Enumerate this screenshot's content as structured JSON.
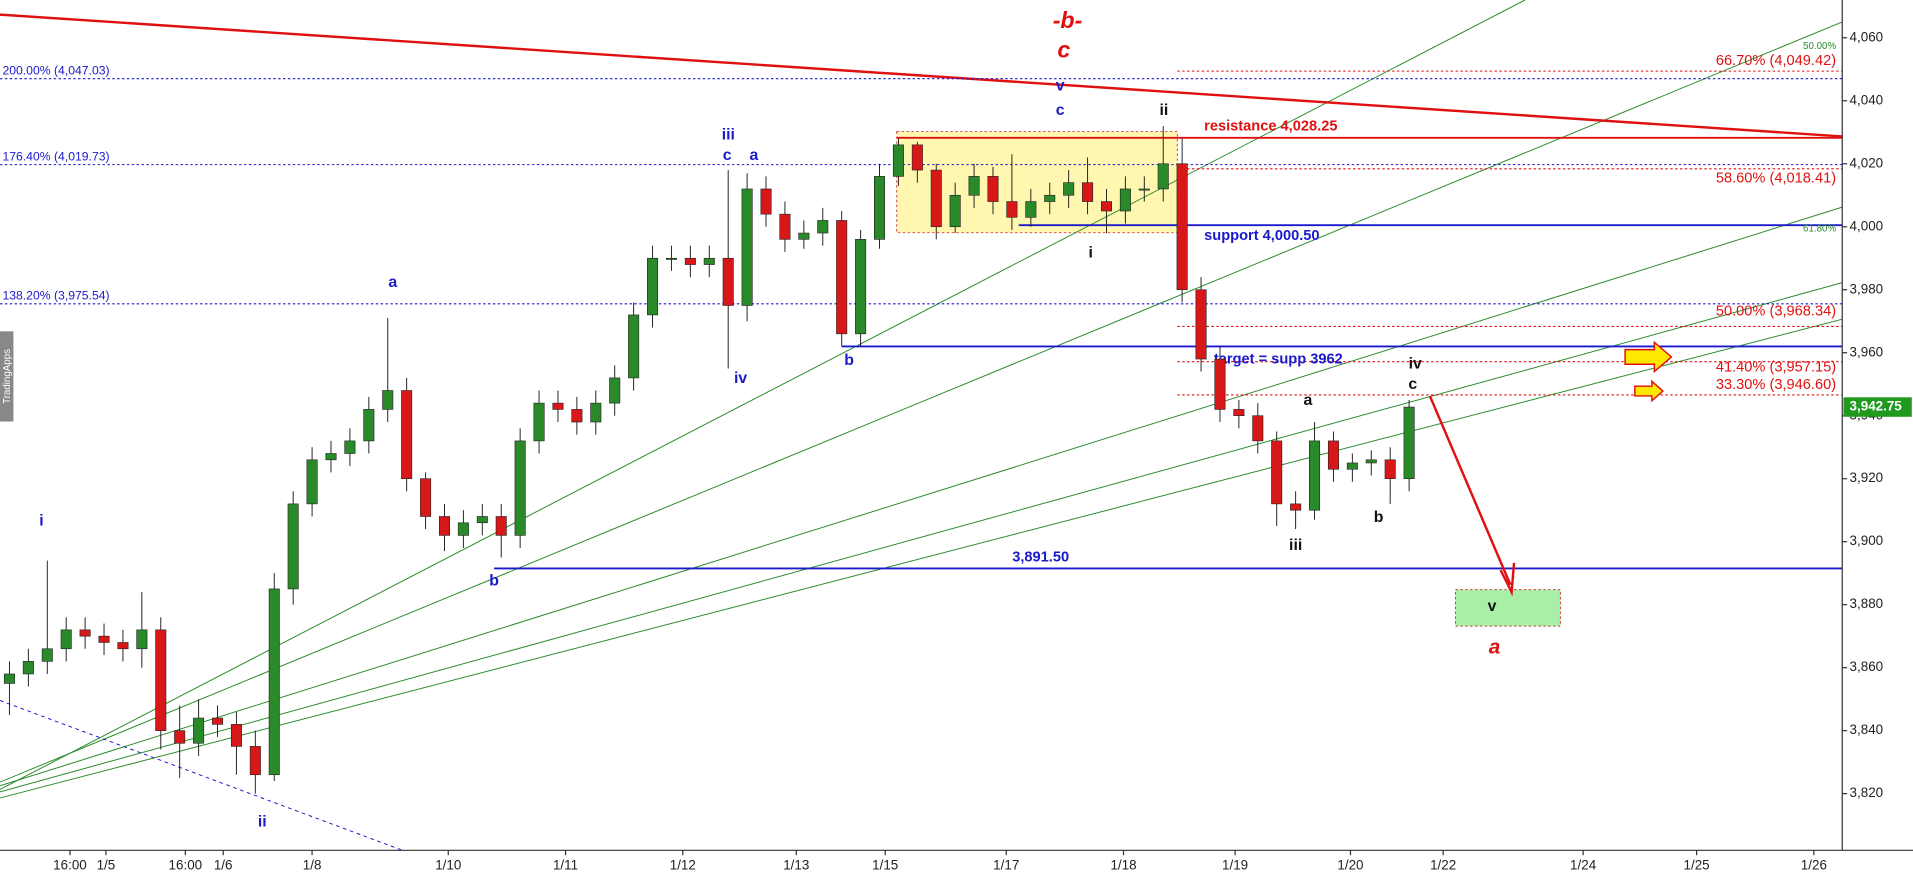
{
  "chart_data": {
    "type": "candlestick",
    "candles": {
      "open": [
        3855,
        3858,
        3862,
        3866,
        3872,
        3870,
        3868,
        3866,
        3872,
        3840,
        3836,
        3844,
        3842,
        3835,
        3826,
        3885,
        3912,
        3926,
        3928,
        3932,
        3942,
        3948,
        3920,
        3908,
        3902,
        3906,
        3908,
        3902,
        3932,
        3944,
        3942,
        3938,
        3944,
        3952,
        3972,
        3990,
        3990,
        3988,
        3990,
        3975,
        4012,
        4004,
        3996,
        3998,
        4002,
        3966,
        3996,
        4016,
        4026,
        4018,
        4000,
        4010,
        4016,
        4008,
        4003,
        4008,
        4010,
        4014,
        4008,
        4005,
        4012,
        4012,
        4020,
        3980,
        3958,
        3942,
        3940,
        3932,
        3912,
        3910,
        3932,
        3923,
        3925,
        3926,
        3920
      ],
      "high": [
        3862,
        3866,
        3894,
        3876,
        3876,
        3874,
        3872,
        3884,
        3876,
        3848,
        3850,
        3848,
        3846,
        3840,
        3890,
        3916,
        3930,
        3932,
        3936,
        3946,
        3971,
        3952,
        3922,
        3912,
        3910,
        3912,
        3912,
        3936,
        3948,
        3948,
        3946,
        3948,
        3956,
        3976,
        3994,
        3994,
        3994,
        3994,
        4018,
        4017,
        4016,
        4008,
        4002,
        4006,
        4005,
        3999,
        4020,
        4028,
        4027,
        4020,
        4014,
        4020,
        4019,
        4023,
        4012,
        4014,
        4018,
        4022,
        4012,
        4016,
        4016,
        4032,
        4028,
        3984,
        3962,
        3945,
        3944,
        3935,
        3916,
        3938,
        3935,
        3928,
        3929,
        3930,
        3945
      ],
      "low": [
        3845,
        3854,
        3858,
        3862,
        3866,
        3864,
        3862,
        3860,
        3834,
        3825,
        3832,
        3838,
        3826,
        3820,
        3824,
        3880,
        3908,
        3922,
        3924,
        3928,
        3938,
        3916,
        3904,
        3897,
        3898,
        3902,
        3895,
        3898,
        3928,
        3938,
        3934,
        3934,
        3940,
        3948,
        3968,
        3986,
        3984,
        3984,
        3955,
        3970,
        4000,
        3992,
        3993,
        3994,
        3962,
        3962,
        3993,
        4013,
        4014,
        3996,
        3998,
        4006,
        4004,
        3999,
        4000,
        4004,
        4006,
        4004,
        3998,
        4001,
        4008,
        4008,
        3976,
        3954,
        3938,
        3936,
        3928,
        3905,
        3904,
        3907,
        3919,
        3919,
        3921,
        3912,
        3916
      ],
      "close": [
        3858,
        3862,
        3866,
        3872,
        3870,
        3868,
        3866,
        3872,
        3840,
        3836,
        3844,
        3842,
        3835,
        3826,
        3885,
        3912,
        3926,
        3928,
        3932,
        3942,
        3948,
        3920,
        3908,
        3902,
        3906,
        3908,
        3902,
        3932,
        3944,
        3942,
        3938,
        3944,
        3952,
        3972,
        3990,
        3990,
        3988,
        3990,
        3975,
        4012,
        4004,
        3996,
        3998,
        4002,
        3966,
        3996,
        4016,
        4026,
        4018,
        4000,
        4010,
        4016,
        4008,
        4003,
        4008,
        4010,
        4014,
        4008,
        4005,
        4012,
        4012,
        4020,
        3980,
        3958,
        3942,
        3940,
        3932,
        3912,
        3910,
        3932,
        3923,
        3925,
        3926,
        3920,
        3942.75
      ],
      "up_color": "#2a8a2a",
      "down_color": "#d81818"
    },
    "xlim": [
      0,
      97.4
    ],
    "xticks": [
      {
        "value": 3.7,
        "label": "16:00"
      },
      {
        "value": 5.6,
        "label": "1/5"
      },
      {
        "value": 9.8,
        "label": "16:00"
      },
      {
        "value": 11.8,
        "label": "1/6"
      },
      {
        "value": 16.5,
        "label": "1/8"
      },
      {
        "value": 23.7,
        "label": "1/10"
      },
      {
        "value": 29.9,
        "label": "1/11"
      },
      {
        "value": 36.1,
        "label": "1/12"
      },
      {
        "value": 42.1,
        "label": "1/13"
      },
      {
        "value": 46.8,
        "label": "1/15"
      },
      {
        "value": 53.2,
        "label": "1/17"
      },
      {
        "value": 59.4,
        "label": "1/18"
      },
      {
        "value": 65.3,
        "label": "1/19"
      },
      {
        "value": 71.4,
        "label": "1/20"
      },
      {
        "value": 76.3,
        "label": "1/22"
      },
      {
        "value": 83.7,
        "label": "1/24"
      },
      {
        "value": 89.7,
        "label": "1/25"
      },
      {
        "value": 95.9,
        "label": "1/26"
      }
    ],
    "ylim": [
      3802,
      4072
    ],
    "yticks": [
      {
        "value": 3820,
        "label": "3,820"
      },
      {
        "value": 3840,
        "label": "3,840"
      },
      {
        "value": 3860,
        "label": "3,860"
      },
      {
        "value": 3880,
        "label": "3,880"
      },
      {
        "value": 3900,
        "label": "3,900"
      },
      {
        "value": 3920,
        "label": "3,920"
      },
      {
        "value": 3940,
        "label": "3,940"
      },
      {
        "value": 3960,
        "label": "3,960"
      },
      {
        "value": 3980,
        "label": "3,980"
      },
      {
        "value": 4000,
        "label": "4,000"
      },
      {
        "value": 4020,
        "label": "4,020"
      },
      {
        "value": 4040,
        "label": "4,040"
      },
      {
        "value": 4060,
        "label": "4,060"
      }
    ],
    "price_tag": {
      "value": 3942.75,
      "label": "3,942.75",
      "color": "#1f9a1f"
    },
    "levels": [
      {
        "label": "200.00% (4,047.03)",
        "value": 4047.03,
        "color": "#1a1acc",
        "style": "dotted"
      },
      {
        "label": "176.40% (4,019.73)",
        "value": 4019.73,
        "color": "#1a1acc",
        "style": "dotted"
      },
      {
        "label": "138.20% (3,975.54)",
        "value": 3975.54,
        "color": "#1a1acc",
        "style": "dotted"
      },
      {
        "label": "66.70% (4,049.42)",
        "value": 4049.42,
        "color": "#e01010",
        "style": "dotted"
      },
      {
        "label": "58.60% (4,018.41)",
        "value": 4018.41,
        "color": "#e01010",
        "style": "dotted"
      },
      {
        "label": "50.00% (3,968.34)",
        "value": 3968.34,
        "color": "#e01010",
        "style": "dotted"
      },
      {
        "label": "41.40% (3,957.15)",
        "value": 3957.15,
        "color": "#e01010",
        "style": "dotted"
      },
      {
        "label": "33.30% (3,946.60)",
        "value": 3946.6,
        "color": "#e01010",
        "style": "dotted"
      },
      {
        "label": "resistance 4,028.25",
        "value": 4028.25,
        "color": "#e01010",
        "style": "solid"
      },
      {
        "label": "support 4,000.50",
        "value": 4000.5,
        "color": "#1a1acc",
        "style": "solid"
      },
      {
        "label": "target = supp 3962",
        "value": 3962,
        "color": "#1a1acc",
        "style": "solid"
      },
      {
        "label": "3,891.50",
        "value": 3891.5,
        "color": "#1a1acc",
        "style": "solid"
      }
    ],
    "annotations": [
      "-b-",
      "c",
      "v",
      "c",
      "ii",
      "iii",
      "c",
      "a",
      "a",
      "i",
      "ii",
      "b",
      "iv",
      "b",
      "i",
      "iv",
      "c",
      "a",
      "iii",
      "b",
      "v",
      "a",
      "50.00%",
      "61.80%",
      "TradingApps"
    ]
  }
}
